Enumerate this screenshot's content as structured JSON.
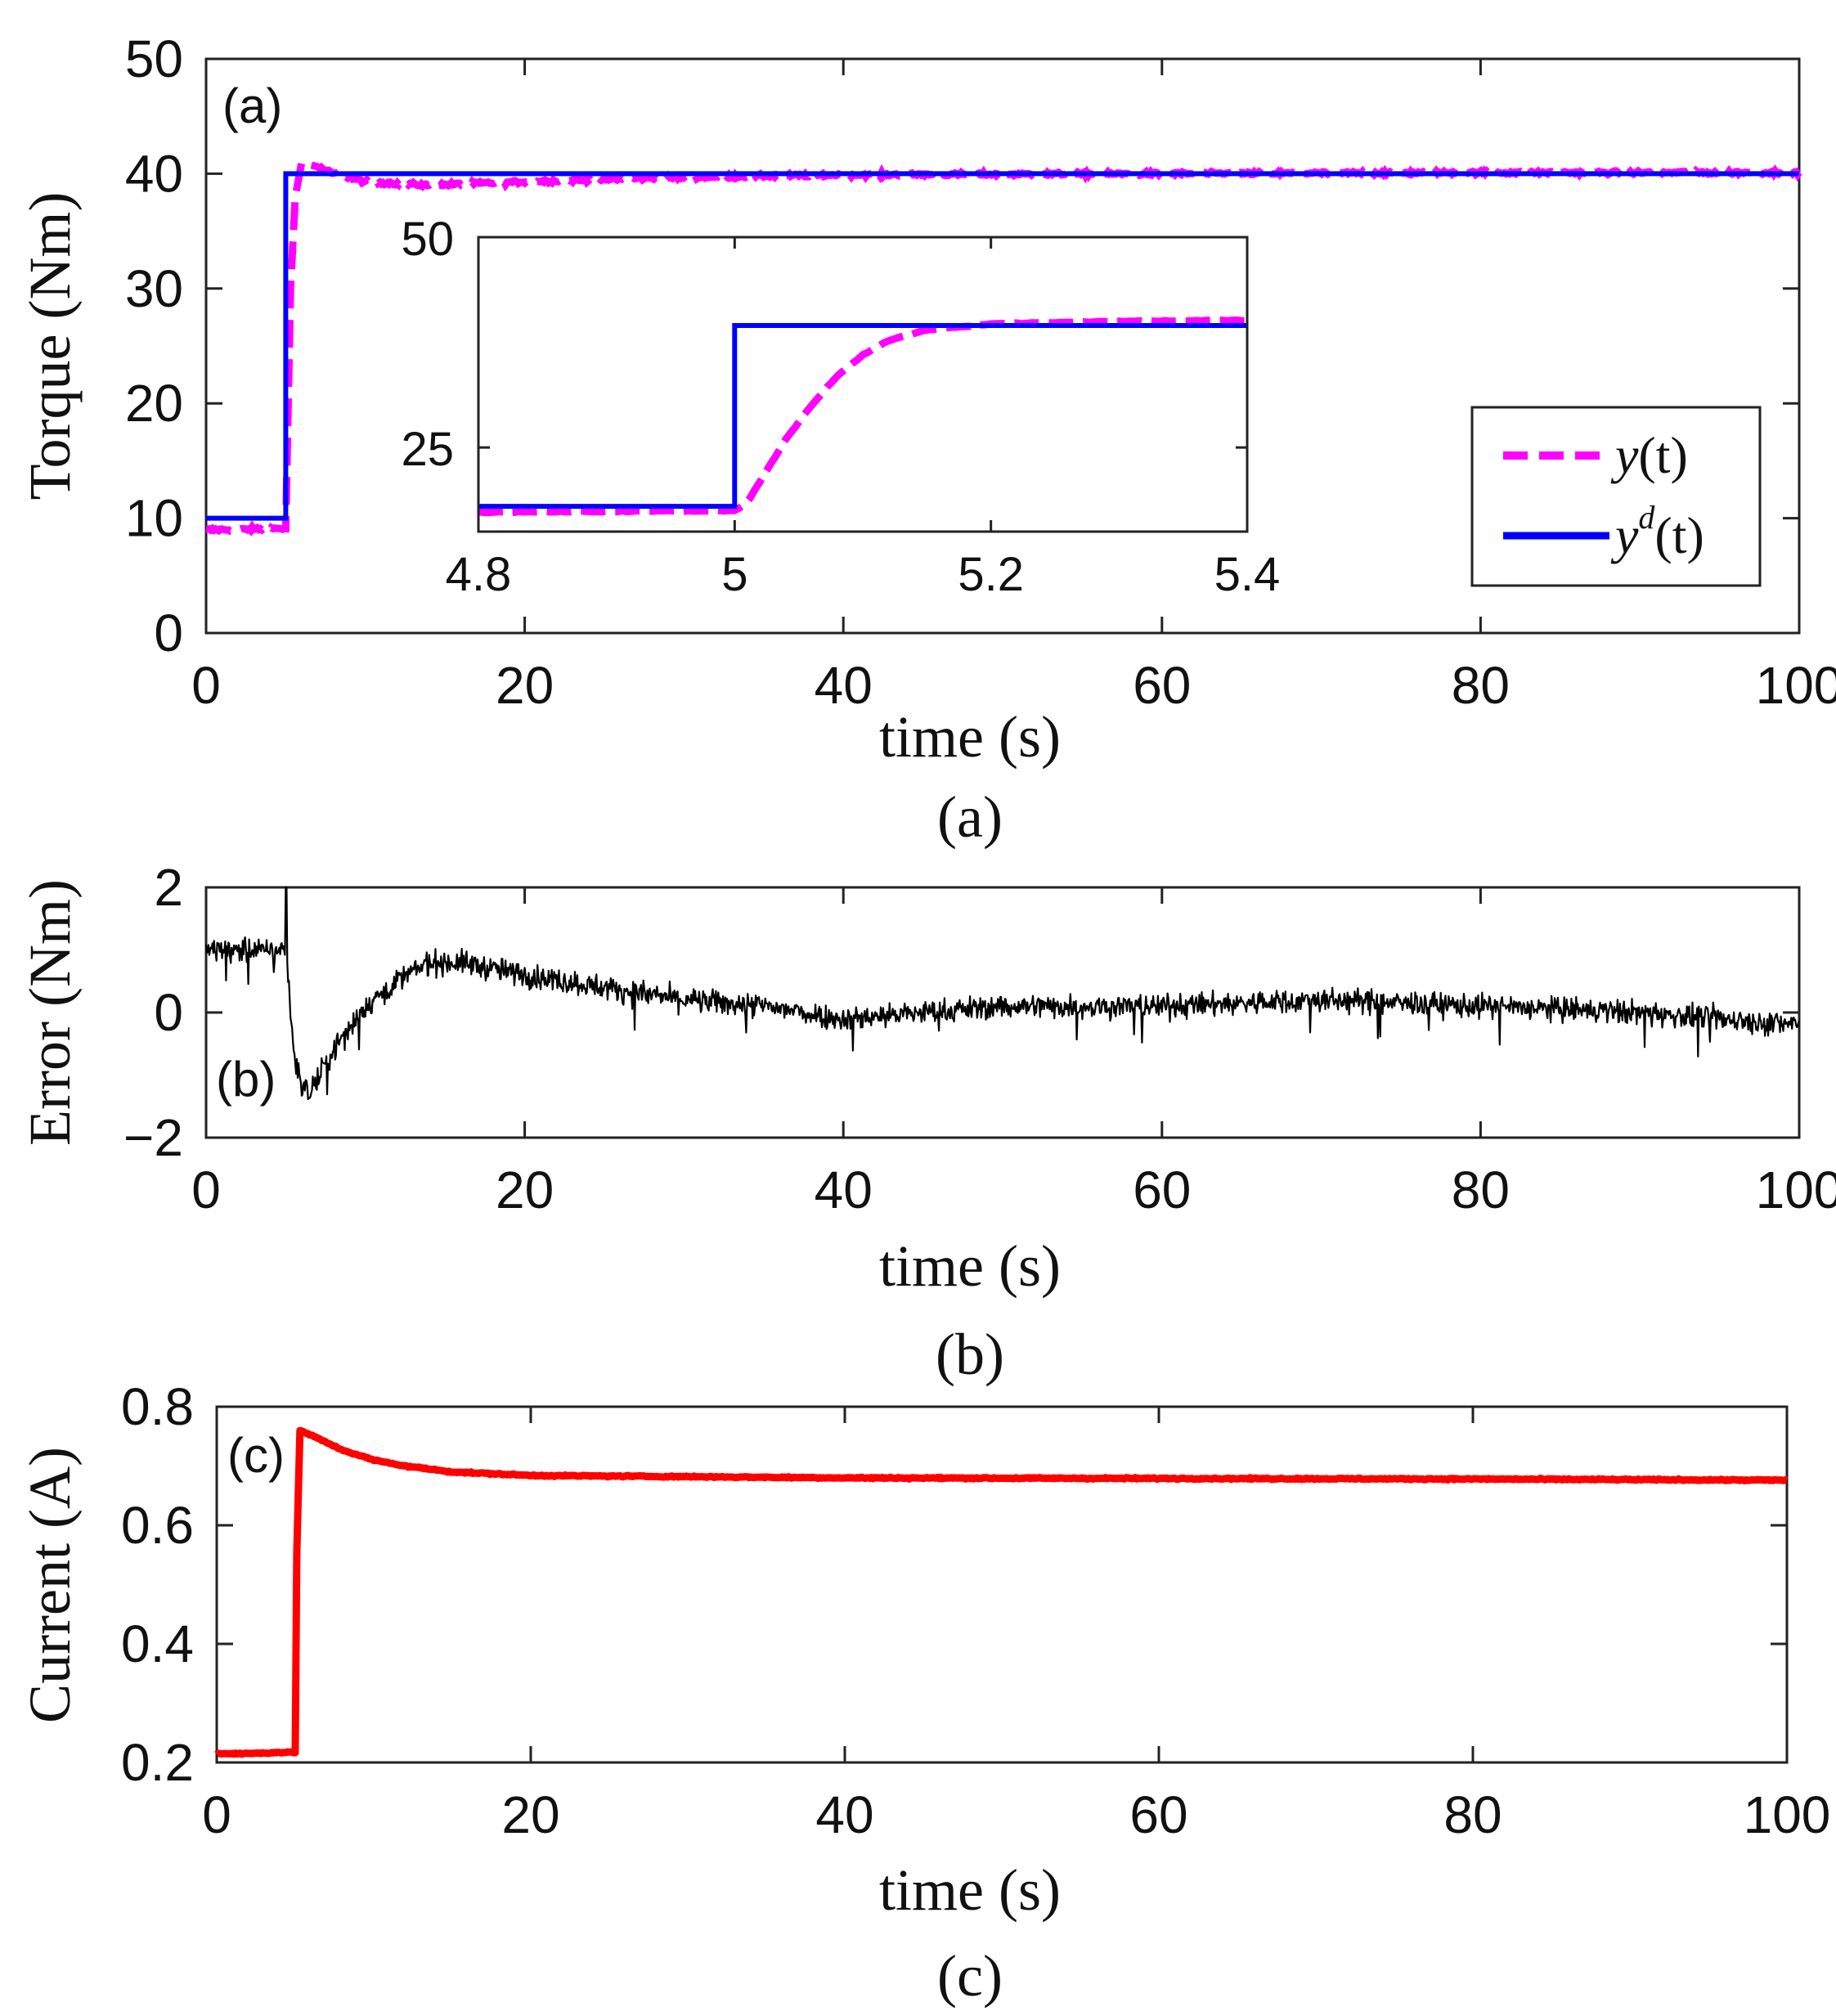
{
  "chart_data": [
    {
      "id": "a",
      "type": "line",
      "panel_label": "(a)",
      "caption": "(a)",
      "xlabel": "time (s)",
      "ylabel": "Torque (Nm)",
      "xlim": [
        0,
        100
      ],
      "ylim": [
        0,
        50
      ],
      "xticks": [
        "0",
        "20",
        "40",
        "60",
        "80",
        "100"
      ],
      "yticks": [
        "0",
        "10",
        "20",
        "30",
        "40",
        "50"
      ],
      "series": [
        {
          "name": "y(t)",
          "style": "dashed",
          "color": "#ff00ff",
          "x": [
            0,
            2,
            4,
            5,
            5.1,
            5.3,
            5.6,
            6,
            7,
            8,
            10,
            14,
            20,
            30,
            40,
            60,
            80,
            100
          ],
          "y": [
            9.0,
            9.0,
            9.1,
            9.1,
            16,
            30,
            38,
            41,
            40.6,
            40.0,
            39.3,
            39.0,
            39.3,
            39.7,
            39.9,
            40.0,
            40.1,
            40.1
          ]
        },
        {
          "name": "y^d(t)",
          "style": "solid",
          "color": "#0000ff",
          "x": [
            0,
            5,
            5,
            100
          ],
          "y": [
            10,
            10,
            40,
            40
          ]
        }
      ],
      "legend": {
        "position": "right",
        "entries": [
          {
            "name": "y(t)",
            "base": "y",
            "sup": "",
            "arg": "(t)"
          },
          {
            "name": "y^d(t)",
            "base": "y",
            "sup": "d",
            "arg": "(t)"
          }
        ]
      },
      "inset": {
        "xlim": [
          4.8,
          5.4
        ],
        "ylim": [
          15,
          50
        ],
        "xticks": [
          "4.8",
          "5",
          "5.2",
          "5.4"
        ],
        "yticks": [
          "25",
          "50"
        ],
        "series": [
          {
            "name": "y(t)",
            "x": [
              4.8,
              4.9,
              5.0,
              5.01,
              5.02,
              5.04,
              5.06,
              5.08,
              5.1,
              5.12,
              5.15,
              5.2,
              5.3,
              5.4
            ],
            "y": [
              17.3,
              17.4,
              17.5,
              18.5,
              21,
              26,
              30,
              33.5,
              36,
              37.7,
              39,
              39.7,
              40.0,
              40.1
            ]
          },
          {
            "name": "y^d(t)",
            "x": [
              4.8,
              5.0,
              5.0,
              5.4
            ],
            "y": [
              18.0,
              18.0,
              39.5,
              39.5
            ]
          }
        ]
      }
    },
    {
      "id": "b",
      "type": "line",
      "panel_label": "(b)",
      "caption": "(b)",
      "xlabel": "time (s)",
      "ylabel": "Error (Nm)",
      "xlim": [
        0,
        100
      ],
      "ylim": [
        -2,
        2
      ],
      "xticks": [
        "0",
        "20",
        "40",
        "60",
        "80",
        "100"
      ],
      "yticks": [
        "−2",
        "0",
        "2"
      ],
      "series": [
        {
          "name": "error",
          "style": "solid",
          "color": "#000000",
          "noise": 0.55,
          "x": [
            0,
            2,
            4,
            5,
            5.5,
            6,
            6.5,
            8,
            10,
            12,
            14,
            16,
            20,
            25,
            30,
            35,
            40,
            50,
            60,
            70,
            80,
            90,
            100
          ],
          "y": [
            1.0,
            1.0,
            1.0,
            1.0,
            -0.6,
            -1.2,
            -1.3,
            -0.6,
            0.1,
            0.5,
            0.8,
            0.8,
            0.6,
            0.4,
            0.2,
            0.1,
            -0.1,
            0.1,
            0.1,
            0.2,
            0.1,
            0.0,
            -0.2
          ]
        }
      ]
    },
    {
      "id": "c",
      "type": "line",
      "panel_label": "(c)",
      "caption": "(c)",
      "xlabel": "time (s)",
      "ylabel": "Current (A)",
      "xlim": [
        0,
        100
      ],
      "ylim": [
        0.2,
        0.8
      ],
      "xticks": [
        "0",
        "20",
        "40",
        "60",
        "80",
        "100"
      ],
      "yticks": [
        "0.2",
        "0.4",
        "0.6",
        "0.8"
      ],
      "series": [
        {
          "name": "current",
          "style": "solid",
          "color": "#ff0000",
          "x": [
            0,
            2,
            4,
            5,
            5.05,
            5.3,
            6,
            8,
            10,
            12,
            15,
            20,
            30,
            40,
            60,
            80,
            100
          ],
          "y": [
            0.215,
            0.215,
            0.217,
            0.217,
            0.5,
            0.76,
            0.752,
            0.727,
            0.71,
            0.7,
            0.69,
            0.684,
            0.682,
            0.68,
            0.679,
            0.678,
            0.676
          ]
        }
      ]
    }
  ]
}
